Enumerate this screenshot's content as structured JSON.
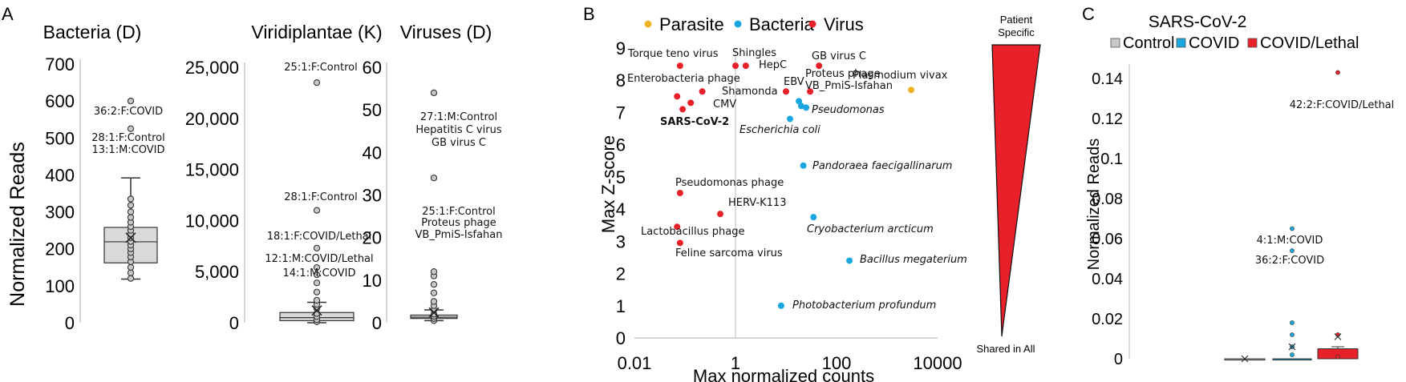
{
  "panels": {
    "A": {
      "letter": "A",
      "ylabel": "Normalized Reads",
      "charts": [
        {
          "title": "Bacteria (D)",
          "type": "box",
          "ylim": [
            0,
            700
          ],
          "ticks": [
            "0",
            "100",
            "200",
            "300",
            "400",
            "500",
            "600",
            "700"
          ],
          "box": {
            "whisker_low": 118,
            "q1": 162,
            "median": 219,
            "q3": 258,
            "whisker_high": 392,
            "mean": 230
          },
          "points": [
            120,
            135,
            150,
            165,
            178,
            190,
            200,
            210,
            220,
            230,
            240,
            250,
            260,
            272,
            285,
            300,
            318,
            335,
            525,
            600
          ],
          "annotations": [
            {
              "text": "36:2:F:COVID",
              "value": 600
            },
            {
              "text": "28:1:F:Control",
              "value": 525
            },
            {
              "text": "13:1:M:COVID",
              "value": 525
            }
          ]
        },
        {
          "title": "Viridiplantae (K)",
          "type": "box",
          "ylim": [
            0,
            25000
          ],
          "ticks": [
            "0",
            "5,000",
            "10,000",
            "15,000",
            "20,000",
            "25,000"
          ],
          "box": {
            "whisker_low": 0,
            "q1": 200,
            "median": 500,
            "q3": 1000,
            "whisker_high": 2000,
            "mean": 1200
          },
          "points": [
            100,
            300,
            600,
            900,
            1400,
            1800,
            2200,
            3000,
            3900,
            4700,
            5400,
            7300,
            11000,
            23500
          ],
          "annotations": [
            {
              "text": "25:1:F:Control",
              "value": 23500
            },
            {
              "text": "28:1:F:Control",
              "value": 11000
            },
            {
              "text": "18:1:F:COVID/Lethal",
              "value": 7300
            },
            {
              "text": "12:1:M:COVID/Lethal",
              "value": 5400
            },
            {
              "text": "14:1:M:COVID",
              "value": 5400
            }
          ]
        },
        {
          "title": "Viruses (D)",
          "type": "box",
          "ylim": [
            0,
            60
          ],
          "ticks": [
            "0",
            "10",
            "20",
            "30",
            "40",
            "50",
            "60"
          ],
          "box": {
            "whisker_low": 0.5,
            "q1": 1,
            "median": 1.3,
            "q3": 1.8,
            "whisker_high": 3,
            "mean": 2.4
          },
          "points": [
            0.5,
            1,
            1.5,
            2,
            3,
            4,
            5,
            7,
            9,
            11,
            12,
            34,
            54
          ],
          "annotations": [
            {
              "text": "27:1:M:Control",
              "value": 54
            },
            {
              "text": "Hepatitis C virus",
              "value": 54
            },
            {
              "text": "GB virus C",
              "value": 54
            },
            {
              "text": "25:1:F:Control",
              "value": 34
            },
            {
              "text": "Proteus phage",
              "value": 34
            },
            {
              "text": "VB_PmiS-Isfahan",
              "value": 34
            }
          ]
        }
      ]
    },
    "B": {
      "letter": "B",
      "chart_data": {
        "type": "scatter",
        "xscale": "log",
        "xlabel": "Max normalized counts",
        "ylabel": "Max Z-score",
        "xlim": [
          0.01,
          10000
        ],
        "ylim": [
          0,
          9
        ],
        "xticks": [
          "0.01",
          "1",
          "100",
          "10000"
        ],
        "yticks": [
          "0",
          "1",
          "2",
          "3",
          "4",
          "5",
          "6",
          "7",
          "8",
          "9"
        ],
        "legend": [
          {
            "label": "Parasite",
            "color": "#f0b323"
          },
          {
            "label": "Bacteria",
            "color": "#1aa7e0"
          },
          {
            "label": "Virus",
            "color": "#e8202a"
          }
        ],
        "points": [
          {
            "label": "Torque teno virus",
            "x": 0.08,
            "y": 8.45,
            "kind": "Virus",
            "italic": false
          },
          {
            "label": "Shingles",
            "x": 1.0,
            "y": 8.45,
            "kind": "Virus",
            "italic": false
          },
          {
            "label": "HepC",
            "x": 1.6,
            "y": 8.45,
            "kind": "Virus",
            "italic": false
          },
          {
            "label": "GB virus C",
            "x": 45,
            "y": 8.45,
            "kind": "Virus",
            "italic": false
          },
          {
            "label": "Enterobacteria phage",
            "x": 0.07,
            "y": 7.5,
            "kind": "Virus",
            "italic": false
          },
          {
            "label": "Shamonda",
            "x": 0.22,
            "y": 7.65,
            "kind": "Virus",
            "italic": false
          },
          {
            "label": "CMV",
            "x": 0.13,
            "y": 7.3,
            "kind": "Virus",
            "italic": false
          },
          {
            "label": "SARS-CoV-2",
            "x": 0.09,
            "y": 7.1,
            "kind": "Virus",
            "italic": false
          },
          {
            "label": "EBV",
            "x": 10,
            "y": 7.65,
            "kind": "Virus",
            "italic": false
          },
          {
            "label": "Proteus phage VB_PmiS-Isfahan",
            "x": 30,
            "y": 7.65,
            "kind": "Virus",
            "italic": false
          },
          {
            "label": "Plasmodium vivax",
            "x": 3000,
            "y": 7.7,
            "kind": "Parasite",
            "italic": false
          },
          {
            "label": "Pseudomonas",
            "x": 18,
            "y": 7.35,
            "kind": "Bacteria",
            "italic": true
          },
          {
            "label": "",
            "x": 20,
            "y": 7.2,
            "kind": "Bacteria",
            "italic": true
          },
          {
            "label": "",
            "x": 25,
            "y": 7.15,
            "kind": "Bacteria",
            "italic": true
          },
          {
            "label": "Escherichia coli",
            "x": 12,
            "y": 6.8,
            "kind": "Bacteria",
            "italic": true
          },
          {
            "label": "Pandoraea faecigallinarum",
            "x": 22,
            "y": 5.35,
            "kind": "Bacteria",
            "italic": true
          },
          {
            "label": "Pseudomonas phage",
            "x": 0.08,
            "y": 4.5,
            "kind": "Virus",
            "italic": false
          },
          {
            "label": "HERV-K113",
            "x": 0.5,
            "y": 3.85,
            "kind": "Virus",
            "italic": false
          },
          {
            "label": "Cryobacterium arcticum",
            "x": 35,
            "y": 3.75,
            "kind": "Bacteria",
            "italic": true
          },
          {
            "label": "Lactobacillus phage",
            "x": 0.07,
            "y": 3.45,
            "kind": "Virus",
            "italic": false
          },
          {
            "label": "Feline sarcoma virus",
            "x": 0.08,
            "y": 2.95,
            "kind": "Virus",
            "italic": false
          },
          {
            "label": "Bacillus megaterium",
            "x": 180,
            "y": 2.4,
            "kind": "Bacteria",
            "italic": true
          },
          {
            "label": "Photobacterium profundum",
            "x": 8,
            "y": 1.0,
            "kind": "Bacteria",
            "italic": true
          }
        ],
        "wedge": {
          "top_label_1": "Patient",
          "top_label_2": "Specific",
          "bottom_label": "Shared in All",
          "color": "#e8202a"
        }
      }
    },
    "C": {
      "letter": "C",
      "title": "SARS-CoV-2",
      "ylabel": "Normalized Reads",
      "ylim": [
        0,
        0.15
      ],
      "yticks": [
        "0",
        "0.02",
        "0.04",
        "0.06",
        "0.08",
        "0.1",
        "0.12",
        "0.14"
      ],
      "legend": [
        {
          "label": "Control",
          "color": "#c8c8c8"
        },
        {
          "label": "COVID",
          "color": "#1aa7e0"
        },
        {
          "label": "COVID/Lethal",
          "color": "#e8202a"
        }
      ],
      "groups": [
        {
          "name": "Control",
          "q1": 0,
          "median": 0,
          "q3": 0,
          "mean": 0,
          "whisker_high": 0,
          "points": [],
          "color": "#c8c8c8"
        },
        {
          "name": "COVID",
          "q1": 0,
          "median": 0,
          "q3": 0,
          "mean": 0.006,
          "whisker_high": 0,
          "points": [
            0.002,
            0.006,
            0.012,
            0.018,
            0.054,
            0.065
          ],
          "color": "#1aa7e0"
        },
        {
          "name": "COVID/Lethal",
          "q1": 0,
          "median": 0.001,
          "q3": 0.005,
          "mean": 0.011,
          "whisker_high": 0.006,
          "points": [
            0.001,
            0.012,
            0.143
          ],
          "color": "#e8202a"
        }
      ],
      "annotations": [
        {
          "text": "42:2:F:COVID/Lethal",
          "value": 0.143
        },
        {
          "text": "4:1:M:COVID",
          "value": 0.065
        },
        {
          "text": "36:2:F:COVID",
          "value": 0.054
        }
      ]
    }
  }
}
